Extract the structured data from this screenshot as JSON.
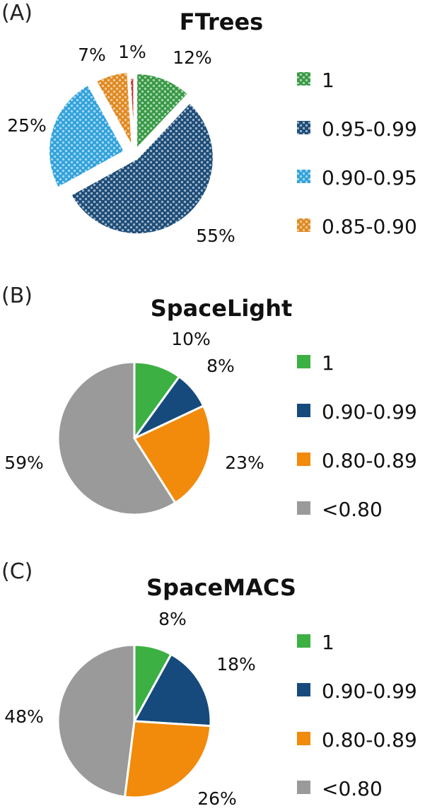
{
  "panels": [
    {
      "label": "(A)"
    },
    {
      "label": "(B)"
    },
    {
      "label": "(C)"
    }
  ],
  "chart_data": [
    {
      "type": "pie",
      "title": "FTrees",
      "categories": [
        "1",
        "0.95-0.99",
        "0.90-0.95",
        "0.85-0.90",
        ""
      ],
      "values": [
        12,
        55,
        25,
        7,
        1
      ],
      "value_labels": [
        "12%",
        "55%",
        "25%",
        "7%",
        "1%"
      ],
      "colors": [
        "#3a9a47",
        "#1f4e79",
        "#33a3dc",
        "#e08a22",
        "#c0392b"
      ],
      "pattern": "checkered",
      "legend": [
        "1",
        "0.95-0.99",
        "0.90-0.95",
        "0.85-0.90"
      ],
      "legend_position": "right"
    },
    {
      "type": "pie",
      "title": "SpaceLight",
      "categories": [
        "1",
        "0.90-0.99",
        "0.80-0.89",
        "<0.80"
      ],
      "values": [
        10,
        8,
        23,
        59
      ],
      "value_labels": [
        "10%",
        "8%",
        "23%",
        "59%"
      ],
      "colors": [
        "#3cb043",
        "#174a7c",
        "#f28a0c",
        "#9a9a9a"
      ],
      "legend": [
        "1",
        "0.90-0.99",
        "0.80-0.89",
        "<0.80"
      ],
      "legend_position": "right"
    },
    {
      "type": "pie",
      "title": "SpaceMACS",
      "categories": [
        "1",
        "0.90-0.99",
        "0.80-0.89",
        "<0.80"
      ],
      "values": [
        8,
        18,
        26,
        48
      ],
      "value_labels": [
        "8%",
        "18%",
        "26%",
        "48%"
      ],
      "colors": [
        "#3cb043",
        "#174a7c",
        "#f28a0c",
        "#9a9a9a"
      ],
      "legend": [
        "1",
        "0.90-0.99",
        "0.80-0.89",
        "<0.80"
      ],
      "legend_position": "right"
    }
  ]
}
